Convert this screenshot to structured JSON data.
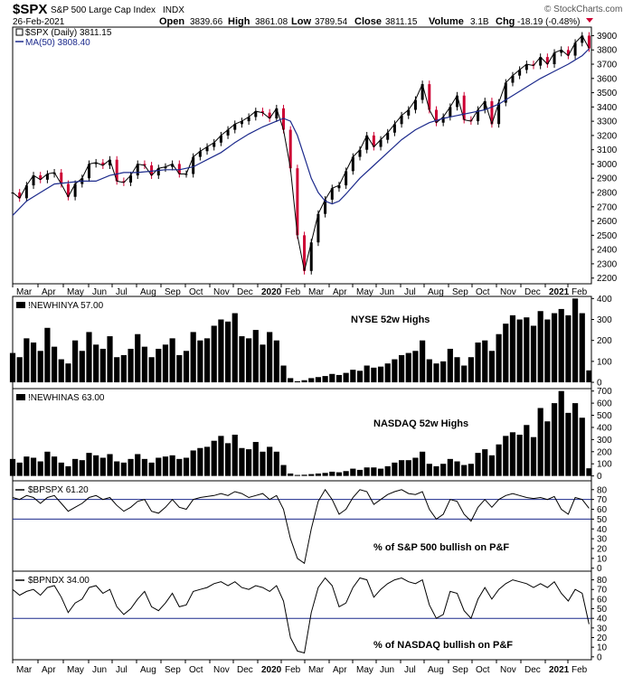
{
  "header": {
    "symbol": "$SPX",
    "name": "S&P 500 Large Cap Index",
    "exchange": "INDX",
    "date": "26-Feb-2021",
    "brand": "© StockCharts.com",
    "quote": {
      "open_label": "Open",
      "open": "3839.66",
      "high_label": "High",
      "high": "3861.08",
      "low_label": "Low",
      "low": "3789.54",
      "close_label": "Close",
      "close": "3811.15",
      "volume_label": "Volume",
      "volume": "3.1B",
      "chg_label": "Chg",
      "chg": "-18.19 (-0.48%)"
    }
  },
  "colors": {
    "price_up": "#000000",
    "price_down": "#cc0033",
    "ma_line": "#1c2a8c",
    "ref_line": "#1c2a8c",
    "bars": "#000000",
    "line": "#000000",
    "border": "#000000"
  },
  "x_axis_labels": [
    "Mar",
    "Apr",
    "May",
    "Jun",
    "Jul",
    "Aug",
    "Sep",
    "Oct",
    "Nov",
    "Dec",
    "2020",
    "Feb",
    "Mar",
    "Apr",
    "May",
    "Jun",
    "Jul",
    "Aug",
    "Sep",
    "Oct",
    "Nov",
    "Dec",
    "2021",
    "Feb"
  ],
  "chart_data": [
    {
      "type": "line",
      "panel": "price",
      "legend": [
        {
          "label": "$SPX (Daily) 3811.15",
          "icon": "candle-icon"
        },
        {
          "label": "MA(50) 3808.40",
          "icon": "line-icon"
        }
      ],
      "y_ticks": [
        2200,
        2300,
        2400,
        2500,
        2600,
        2700,
        2800,
        2900,
        3000,
        3100,
        3200,
        3300,
        3400,
        3500,
        3600,
        3700,
        3800,
        3900
      ],
      "ylim": [
        2160,
        3960
      ],
      "series": [
        {
          "name": "$SPX (Daily)",
          "x": [
            0,
            6,
            12,
            18,
            24,
            30,
            36,
            42,
            48,
            54,
            60,
            66,
            72,
            78,
            84,
            90,
            96,
            102,
            108,
            114,
            120,
            126,
            132,
            138,
            144,
            150,
            156,
            162,
            168,
            174,
            180,
            186,
            192,
            198,
            204,
            210,
            216,
            222,
            228,
            234,
            240,
            246,
            252,
            258,
            264,
            270,
            276,
            282,
            288,
            294,
            300,
            306,
            312,
            318,
            324,
            330,
            336,
            342,
            348,
            354,
            360,
            366,
            372,
            378,
            384,
            390,
            396,
            402,
            408,
            414,
            420,
            426,
            432,
            438,
            444,
            450,
            456,
            462,
            468,
            474,
            480,
            486,
            492,
            498
          ],
          "values": [
            2800,
            2760,
            2850,
            2920,
            2890,
            2930,
            2940,
            2860,
            2770,
            2860,
            2900,
            3000,
            3010,
            2990,
            3030,
            2880,
            2870,
            2920,
            3000,
            2990,
            2920,
            2970,
            2980,
            3000,
            2930,
            2930,
            3050,
            3090,
            3120,
            3150,
            3200,
            3240,
            3280,
            3300,
            3330,
            3370,
            3360,
            3320,
            3390,
            3240,
            2970,
            2500,
            2250,
            2450,
            2650,
            2750,
            2830,
            2850,
            2950,
            3050,
            3100,
            3200,
            3120,
            3170,
            3220,
            3280,
            3340,
            3380,
            3450,
            3560,
            3380,
            3290,
            3330,
            3400,
            3480,
            3310,
            3300,
            3380,
            3440,
            3280,
            3430,
            3570,
            3620,
            3660,
            3700,
            3690,
            3750,
            3700,
            3780,
            3800,
            3760,
            3850,
            3900,
            3811
          ]
        },
        {
          "name": "MA(50)",
          "x": [
            0,
            12,
            24,
            36,
            48,
            60,
            72,
            84,
            96,
            108,
            120,
            132,
            144,
            156,
            168,
            180,
            192,
            204,
            216,
            228,
            234,
            240,
            246,
            252,
            258,
            264,
            270,
            276,
            282,
            288,
            300,
            312,
            324,
            336,
            348,
            360,
            372,
            384,
            396,
            408,
            420,
            432,
            444,
            456,
            468,
            480,
            492,
            498
          ],
          "values": [
            2640,
            2740,
            2800,
            2860,
            2870,
            2880,
            2880,
            2920,
            2940,
            2940,
            2950,
            2960,
            2960,
            2980,
            3030,
            3080,
            3150,
            3210,
            3260,
            3300,
            3320,
            3300,
            3200,
            3050,
            2900,
            2800,
            2740,
            2720,
            2740,
            2790,
            2900,
            2990,
            3080,
            3170,
            3240,
            3290,
            3320,
            3340,
            3360,
            3380,
            3420,
            3480,
            3540,
            3600,
            3650,
            3700,
            3760,
            3808
          ]
        }
      ]
    },
    {
      "type": "bar",
      "panel": "nyse_highs",
      "label": "!NEWHINYA 57.00",
      "annotation": "NYSE 52w Highs",
      "y_ticks": [
        0,
        100,
        200,
        300,
        400
      ],
      "ylim": [
        -30,
        410
      ],
      "x": [
        0,
        6,
        12,
        18,
        24,
        30,
        36,
        42,
        48,
        54,
        60,
        66,
        72,
        78,
        84,
        90,
        96,
        102,
        108,
        114,
        120,
        126,
        132,
        138,
        144,
        150,
        156,
        162,
        168,
        174,
        180,
        186,
        192,
        198,
        204,
        210,
        216,
        222,
        228,
        234,
        240,
        246,
        252,
        258,
        264,
        270,
        276,
        282,
        288,
        294,
        300,
        306,
        312,
        318,
        324,
        330,
        336,
        342,
        348,
        354,
        360,
        366,
        372,
        378,
        384,
        390,
        396,
        402,
        408,
        414,
        420,
        426,
        432,
        438,
        444,
        450,
        456,
        462,
        468,
        474,
        480,
        486,
        492,
        498
      ],
      "values": [
        140,
        120,
        210,
        190,
        150,
        260,
        170,
        110,
        90,
        200,
        150,
        240,
        180,
        160,
        220,
        120,
        130,
        160,
        230,
        170,
        120,
        160,
        180,
        210,
        130,
        150,
        240,
        200,
        210,
        270,
        300,
        290,
        330,
        220,
        210,
        250,
        180,
        240,
        200,
        80,
        20,
        5,
        10,
        20,
        25,
        30,
        40,
        35,
        45,
        60,
        55,
        80,
        70,
        75,
        90,
        110,
        130,
        140,
        150,
        200,
        110,
        90,
        100,
        160,
        120,
        80,
        120,
        190,
        200,
        150,
        230,
        280,
        320,
        300,
        310,
        270,
        340,
        300,
        330,
        350,
        320,
        400,
        330,
        57
      ]
    },
    {
      "type": "bar",
      "panel": "nasdaq_highs",
      "label": "!NEWHINAS 63.00",
      "annotation": "NASDAQ 52w Highs",
      "y_ticks": [
        0,
        100,
        200,
        300,
        400,
        500,
        600,
        700
      ],
      "ylim": [
        -40,
        720
      ],
      "x": [
        0,
        6,
        12,
        18,
        24,
        30,
        36,
        42,
        48,
        54,
        60,
        66,
        72,
        78,
        84,
        90,
        96,
        102,
        108,
        114,
        120,
        126,
        132,
        138,
        144,
        150,
        156,
        162,
        168,
        174,
        180,
        186,
        192,
        198,
        204,
        210,
        216,
        222,
        228,
        234,
        240,
        246,
        252,
        258,
        264,
        270,
        276,
        282,
        288,
        294,
        300,
        306,
        312,
        318,
        324,
        330,
        336,
        342,
        348,
        354,
        360,
        366,
        372,
        378,
        384,
        390,
        396,
        402,
        408,
        414,
        420,
        426,
        432,
        438,
        444,
        450,
        456,
        462,
        468,
        474,
        480,
        486,
        492,
        498
      ],
      "values": [
        140,
        110,
        160,
        150,
        120,
        200,
        160,
        110,
        80,
        140,
        130,
        190,
        170,
        150,
        180,
        120,
        110,
        140,
        180,
        140,
        110,
        150,
        160,
        170,
        140,
        150,
        210,
        230,
        240,
        290,
        330,
        270,
        340,
        230,
        220,
        280,
        200,
        240,
        200,
        90,
        20,
        8,
        10,
        15,
        20,
        25,
        35,
        30,
        40,
        60,
        50,
        70,
        70,
        60,
        80,
        110,
        130,
        130,
        150,
        200,
        100,
        80,
        100,
        140,
        120,
        90,
        100,
        190,
        220,
        170,
        260,
        330,
        360,
        340,
        420,
        320,
        560,
        450,
        600,
        700,
        520,
        600,
        480,
        63
      ]
    },
    {
      "type": "line",
      "panel": "bpspx",
      "label": "$BPSPX 61.20",
      "annotation": "% of S&P 500 bullish on  P&F",
      "y_ticks": [
        0,
        10,
        20,
        30,
        40,
        50,
        60,
        70,
        80
      ],
      "ylim": [
        -3,
        89
      ],
      "reference_lines": [
        50,
        70
      ],
      "x": [
        0,
        6,
        12,
        18,
        24,
        30,
        36,
        42,
        48,
        54,
        60,
        66,
        72,
        78,
        84,
        90,
        96,
        102,
        108,
        114,
        120,
        126,
        132,
        138,
        144,
        150,
        156,
        162,
        168,
        174,
        180,
        186,
        192,
        198,
        204,
        210,
        216,
        222,
        228,
        234,
        240,
        246,
        252,
        258,
        264,
        270,
        276,
        282,
        288,
        294,
        300,
        306,
        312,
        318,
        324,
        330,
        336,
        342,
        348,
        354,
        360,
        366,
        372,
        378,
        384,
        390,
        396,
        402,
        408,
        414,
        420,
        426,
        432,
        438,
        444,
        450,
        456,
        462,
        468,
        474,
        480,
        486,
        492,
        498
      ],
      "values": [
        72,
        70,
        74,
        72,
        66,
        72,
        74,
        66,
        58,
        62,
        66,
        72,
        74,
        70,
        72,
        64,
        58,
        62,
        68,
        70,
        58,
        56,
        62,
        70,
        62,
        60,
        70,
        72,
        73,
        74,
        76,
        74,
        78,
        76,
        72,
        74,
        76,
        70,
        74,
        60,
        30,
        10,
        5,
        40,
        68,
        80,
        70,
        55,
        60,
        72,
        80,
        78,
        65,
        70,
        75,
        78,
        80,
        76,
        75,
        78,
        60,
        50,
        55,
        70,
        68,
        55,
        48,
        62,
        70,
        62,
        70,
        74,
        76,
        74,
        72,
        71,
        72,
        70,
        73,
        60,
        55,
        72,
        70,
        61
      ]
    },
    {
      "type": "line",
      "panel": "bpndx",
      "label": "$BPNDX 34.00",
      "annotation": "% of NASDAQ bullish on P&F",
      "y_ticks": [
        0,
        10,
        20,
        30,
        40,
        50,
        60,
        70,
        80
      ],
      "ylim": [
        -3,
        89
      ],
      "reference_lines": [
        40
      ],
      "x": [
        0,
        6,
        12,
        18,
        24,
        30,
        36,
        42,
        48,
        54,
        60,
        66,
        72,
        78,
        84,
        90,
        96,
        102,
        108,
        114,
        120,
        126,
        132,
        138,
        144,
        150,
        156,
        162,
        168,
        174,
        180,
        186,
        192,
        198,
        204,
        210,
        216,
        222,
        228,
        234,
        240,
        246,
        252,
        258,
        264,
        270,
        276,
        282,
        288,
        294,
        300,
        306,
        312,
        318,
        324,
        330,
        336,
        342,
        348,
        354,
        360,
        366,
        372,
        378,
        384,
        390,
        396,
        402,
        408,
        414,
        420,
        426,
        432,
        438,
        444,
        450,
        456,
        462,
        468,
        474,
        480,
        486,
        492,
        498
      ],
      "values": [
        70,
        64,
        68,
        70,
        64,
        72,
        74,
        62,
        46,
        56,
        60,
        72,
        74,
        66,
        70,
        52,
        44,
        50,
        60,
        68,
        52,
        48,
        56,
        66,
        52,
        54,
        68,
        70,
        72,
        76,
        78,
        74,
        78,
        72,
        70,
        74,
        72,
        68,
        74,
        58,
        20,
        6,
        4,
        46,
        72,
        82,
        74,
        52,
        56,
        72,
        82,
        80,
        62,
        70,
        76,
        80,
        82,
        78,
        76,
        80,
        54,
        40,
        44,
        68,
        66,
        48,
        40,
        60,
        72,
        60,
        70,
        76,
        80,
        78,
        76,
        72,
        76,
        72,
        78,
        66,
        58,
        70,
        66,
        34
      ]
    }
  ]
}
